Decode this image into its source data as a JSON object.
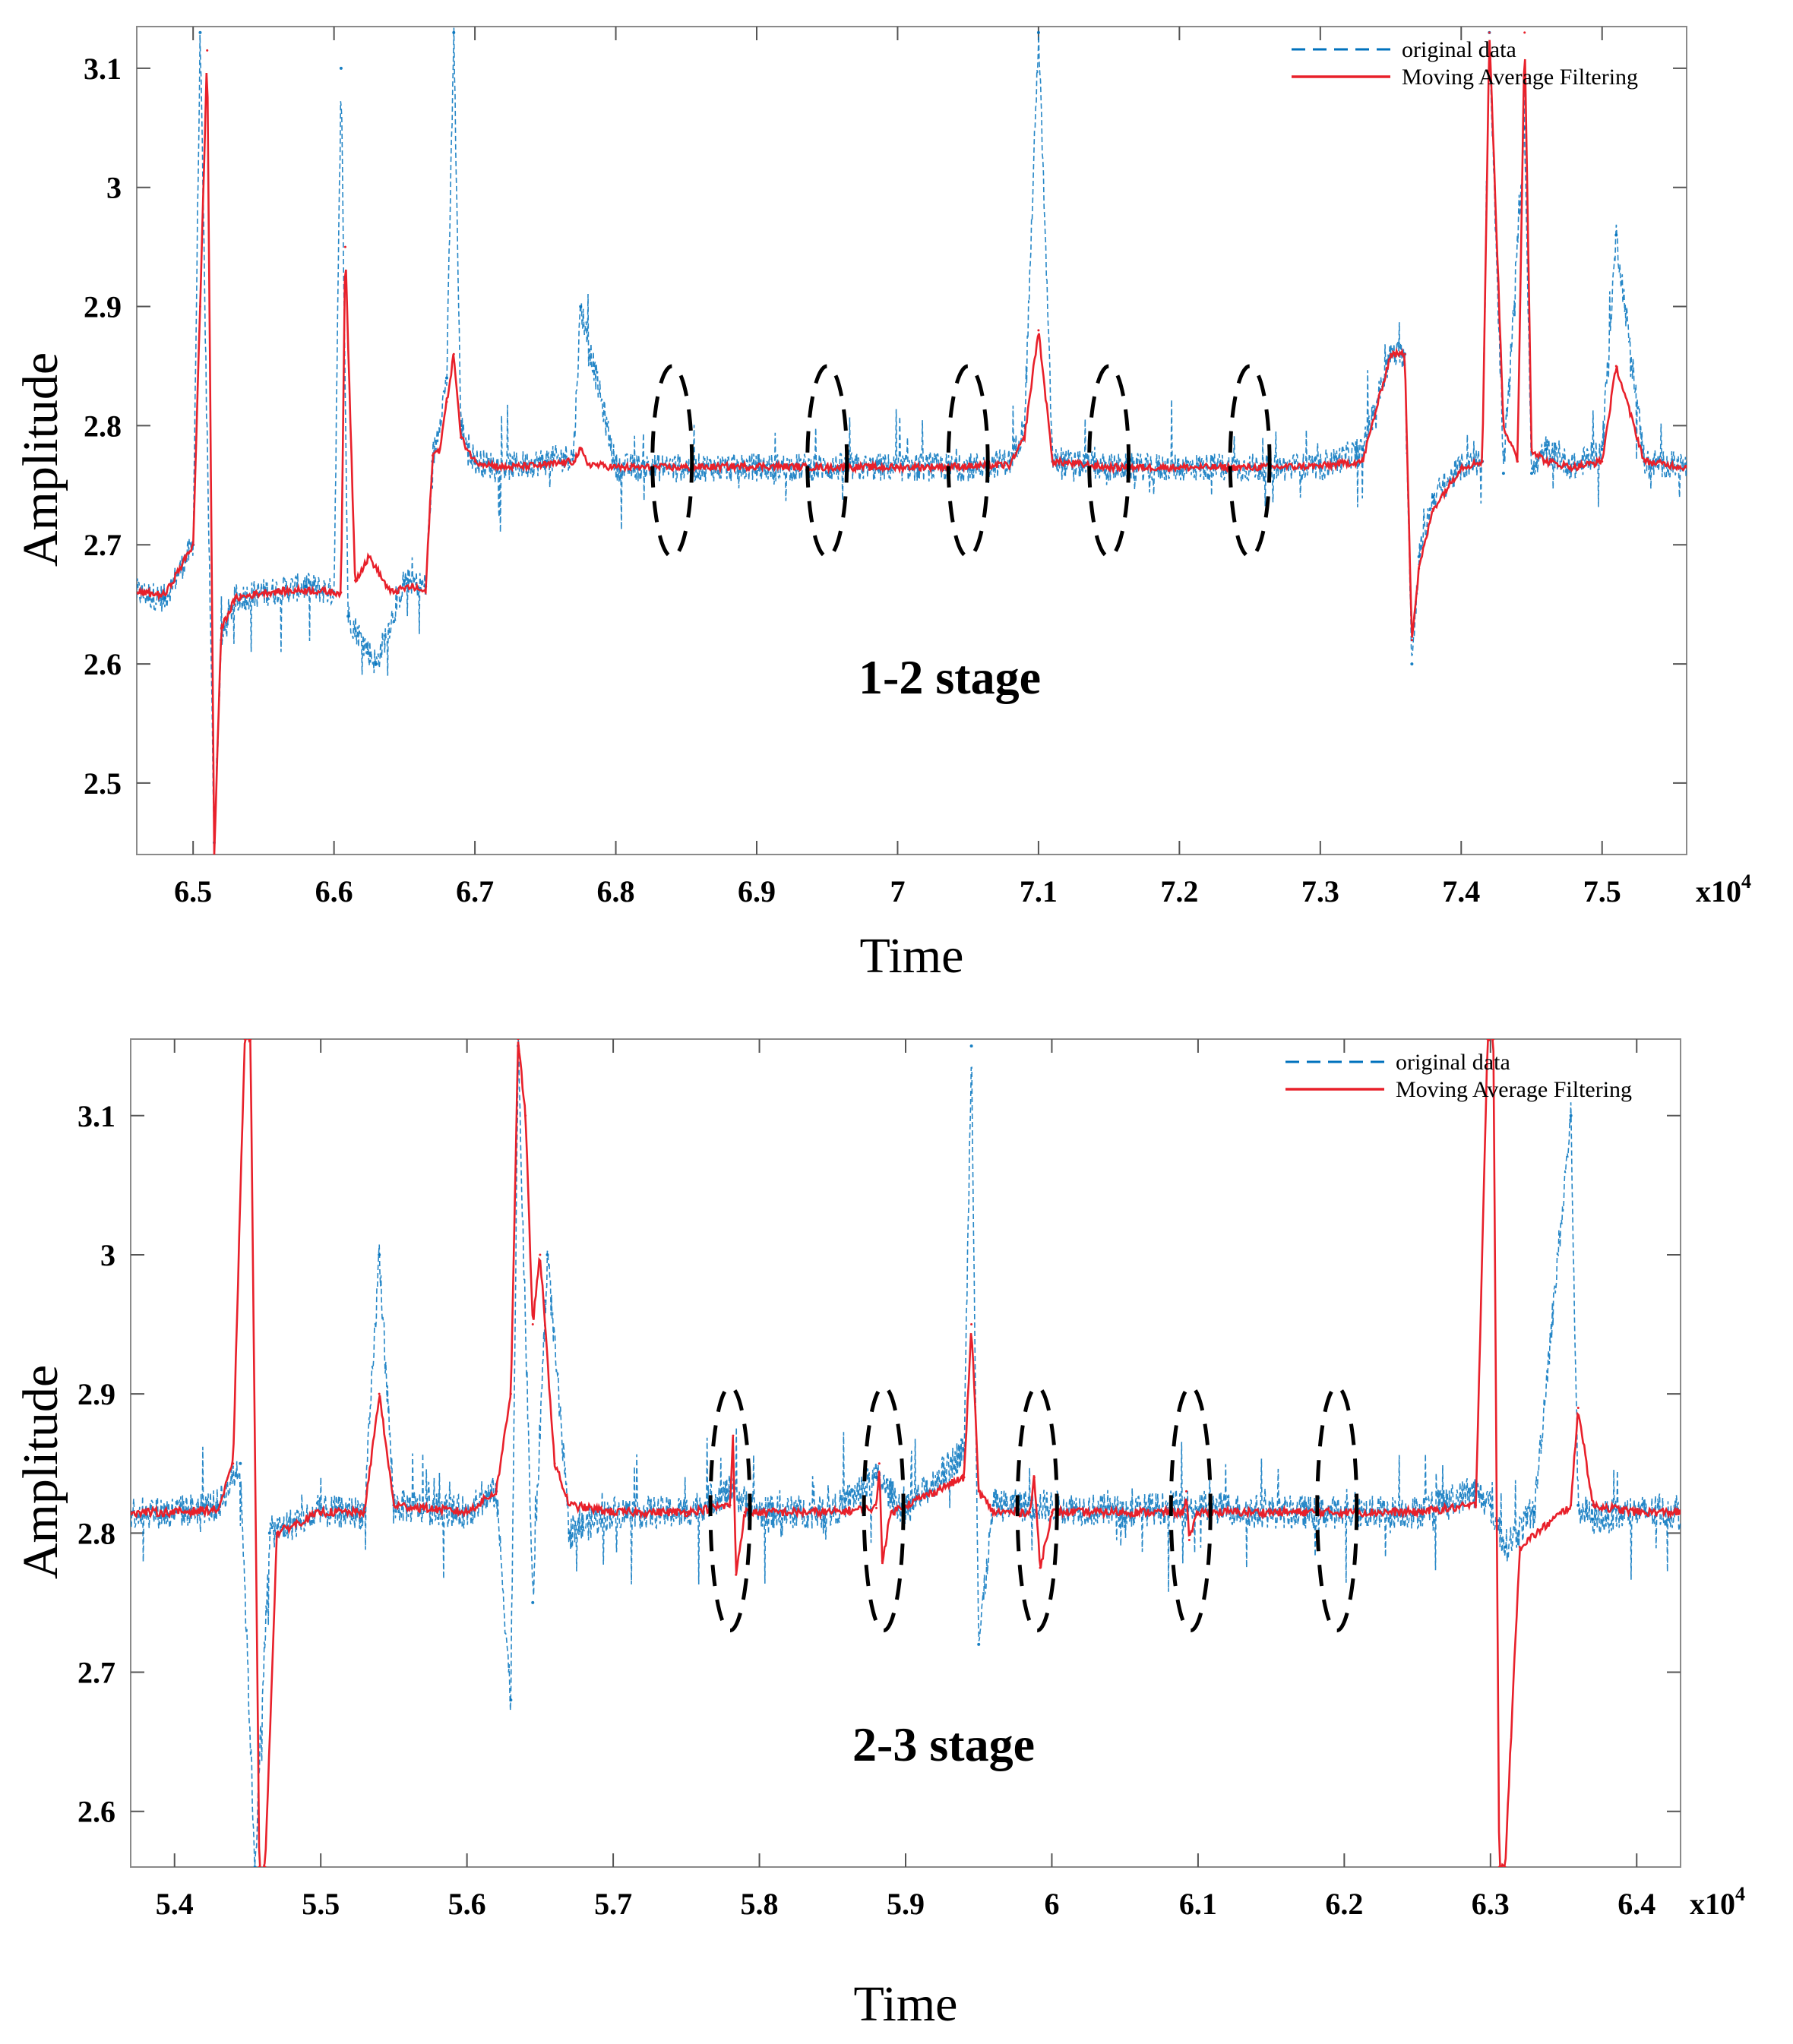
{
  "chart_data": [
    {
      "type": "line",
      "stage_label": "1-2 stage",
      "xlabel": "Time",
      "ylabel": "Amplitude",
      "x_multiplier_base": "x10",
      "x_multiplier_exp": "4",
      "xlim": [
        6.46,
        7.56
      ],
      "ylim": [
        2.44,
        3.135
      ],
      "xticks": [
        6.5,
        6.6,
        6.7,
        6.8,
        6.9,
        7,
        7.1,
        7.2,
        7.3,
        7.4,
        7.5
      ],
      "xtick_labels": [
        "6.5",
        "6.6",
        "6.7",
        "6.8",
        "6.9",
        "7",
        "7.1",
        "7.2",
        "7.3",
        "7.4",
        "7.5"
      ],
      "yticks": [
        2.5,
        2.6,
        2.7,
        2.8,
        2.9,
        3,
        3.1
      ],
      "ytick_labels": [
        "2.5",
        "2.6",
        "2.7",
        "2.8",
        "2.9",
        "3",
        "3.1"
      ],
      "legend": {
        "position": "top-right",
        "entries": [
          "original data",
          "Moving Average Filtering"
        ]
      },
      "series": [
        {
          "name": "original data",
          "style": "dashed",
          "color": "#0072BD",
          "x": [
            6.46,
            6.48,
            6.5,
            6.505,
            6.515,
            6.52,
            6.53,
            6.55,
            6.58,
            6.6,
            6.605,
            6.61,
            6.63,
            6.65,
            6.665,
            6.67,
            6.68,
            6.685,
            6.69,
            6.7,
            6.72,
            6.75,
            6.77,
            6.775,
            6.8,
            6.85,
            6.9,
            6.95,
            7.0,
            7.05,
            7.08,
            7.09,
            7.1,
            7.11,
            7.15,
            7.2,
            7.25,
            7.3,
            7.33,
            7.35,
            7.36,
            7.365,
            7.37,
            7.38,
            7.4,
            7.415,
            7.42,
            7.43,
            7.445,
            7.45,
            7.46,
            7.48,
            7.5,
            7.51,
            7.53,
            7.56
          ],
          "values": [
            2.66,
            2.655,
            2.7,
            3.13,
            2.45,
            2.62,
            2.655,
            2.66,
            2.665,
            2.66,
            3.1,
            2.64,
            2.6,
            2.67,
            2.665,
            2.77,
            2.84,
            3.13,
            2.8,
            2.77,
            2.765,
            2.77,
            2.775,
            2.9,
            2.765,
            2.765,
            2.765,
            2.765,
            2.765,
            2.765,
            2.77,
            2.8,
            3.13,
            2.77,
            2.765,
            2.765,
            2.765,
            2.765,
            2.78,
            2.86,
            2.86,
            2.6,
            2.69,
            2.74,
            2.765,
            2.77,
            3.13,
            2.76,
            3.05,
            2.76,
            2.78,
            2.765,
            2.78,
            2.96,
            2.77,
            2.765
          ]
        },
        {
          "name": "Moving Average Filtering",
          "style": "solid",
          "color": "#E8202A",
          "x": [
            6.46,
            6.48,
            6.5,
            6.505,
            6.51,
            6.515,
            6.52,
            6.53,
            6.55,
            6.58,
            6.6,
            6.605,
            6.608,
            6.615,
            6.625,
            6.64,
            6.655,
            6.665,
            6.67,
            6.675,
            6.68,
            6.685,
            6.69,
            6.7,
            6.72,
            6.75,
            6.77,
            6.775,
            6.78,
            6.8,
            6.85,
            6.9,
            6.95,
            7.0,
            7.05,
            7.08,
            7.09,
            7.1,
            7.11,
            7.15,
            7.2,
            7.25,
            7.3,
            7.33,
            7.35,
            7.36,
            7.365,
            7.37,
            7.38,
            7.4,
            7.415,
            7.42,
            7.43,
            7.44,
            7.445,
            7.45,
            7.46,
            7.48,
            7.5,
            7.51,
            7.53,
            7.56
          ],
          "values": [
            2.66,
            2.658,
            2.7,
            2.9,
            3.115,
            2.44,
            2.63,
            2.655,
            2.66,
            2.662,
            2.66,
            2.66,
            2.95,
            2.67,
            2.69,
            2.66,
            2.665,
            2.66,
            2.775,
            2.78,
            2.82,
            2.86,
            2.79,
            2.77,
            2.765,
            2.767,
            2.77,
            2.78,
            2.768,
            2.765,
            2.765,
            2.766,
            2.765,
            2.765,
            2.766,
            2.767,
            2.79,
            2.88,
            2.77,
            2.765,
            2.765,
            2.765,
            2.766,
            2.77,
            2.86,
            2.86,
            2.62,
            2.68,
            2.73,
            2.765,
            2.77,
            3.13,
            2.8,
            2.77,
            3.13,
            2.78,
            2.77,
            2.765,
            2.77,
            2.85,
            2.77,
            2.765
          ]
        }
      ],
      "annotations": {
        "dashed_ellipses_x": [
          6.84,
          6.95,
          7.05,
          7.15,
          7.25
        ],
        "dashed_ellipses_y_range": [
          2.69,
          2.85
        ]
      }
    },
    {
      "type": "line",
      "stage_label": "2-3 stage",
      "xlabel": "Time",
      "ylabel": "Amplitude",
      "x_multiplier_base": "x10",
      "x_multiplier_exp": "4",
      "xlim": [
        5.37,
        6.43
      ],
      "ylim": [
        2.56,
        3.155
      ],
      "xticks": [
        5.4,
        5.5,
        5.6,
        5.7,
        5.8,
        5.9,
        6,
        6.1,
        6.2,
        6.3,
        6.4
      ],
      "xtick_labels": [
        "5.4",
        "5.5",
        "5.6",
        "5.7",
        "5.8",
        "5.9",
        "6",
        "6.1",
        "6.2",
        "6.3",
        "6.4"
      ],
      "yticks": [
        2.6,
        2.7,
        2.8,
        2.9,
        3,
        3.1
      ],
      "ytick_labels": [
        "2.6",
        "2.7",
        "2.8",
        "2.9",
        "3",
        "3.1"
      ],
      "legend": {
        "position": "top-right",
        "entries": [
          "original data",
          "Moving Average Filtering"
        ]
      },
      "series": [
        {
          "name": "original data",
          "style": "dashed",
          "color": "#0072BD",
          "x": [
            5.37,
            5.4,
            5.43,
            5.445,
            5.455,
            5.465,
            5.5,
            5.53,
            5.54,
            5.55,
            5.6,
            5.62,
            5.63,
            5.635,
            5.645,
            5.655,
            5.67,
            5.7,
            5.75,
            5.78,
            5.8,
            5.85,
            5.88,
            5.9,
            5.94,
            5.945,
            5.95,
            5.96,
            5.99,
            6.05,
            6.09,
            6.15,
            6.2,
            6.25,
            6.29,
            6.3,
            6.31,
            6.33,
            6.355,
            6.36,
            6.37,
            6.4,
            6.43
          ],
          "values": [
            2.815,
            2.815,
            2.82,
            2.85,
            2.56,
            2.8,
            2.815,
            2.815,
            3.0,
            2.82,
            2.815,
            2.83,
            2.68,
            3.15,
            2.75,
            3.0,
            2.8,
            2.815,
            2.815,
            2.83,
            2.815,
            2.815,
            2.84,
            2.815,
            2.86,
            3.15,
            2.72,
            2.82,
            2.82,
            2.815,
            2.82,
            2.815,
            2.815,
            2.815,
            2.83,
            2.82,
            2.79,
            2.815,
            3.1,
            2.82,
            2.81,
            2.815,
            2.815
          ]
        },
        {
          "name": "Moving Average Filtering",
          "style": "solid",
          "color": "#E8202A",
          "x": [
            5.37,
            5.4,
            5.43,
            5.44,
            5.448,
            5.452,
            5.458,
            5.462,
            5.47,
            5.5,
            5.53,
            5.54,
            5.55,
            5.6,
            5.62,
            5.63,
            5.635,
            5.64,
            5.645,
            5.65,
            5.66,
            5.67,
            5.7,
            5.75,
            5.78,
            5.782,
            5.784,
            5.79,
            5.85,
            5.88,
            5.882,
            5.884,
            5.89,
            5.94,
            5.945,
            5.95,
            5.96,
            5.985,
            5.988,
            5.992,
            6.0,
            6.09,
            6.092,
            6.094,
            6.1,
            6.2,
            6.25,
            6.29,
            6.298,
            6.302,
            6.306,
            6.31,
            6.32,
            6.355,
            6.36,
            6.37,
            6.4,
            6.43
          ],
          "values": [
            2.815,
            2.815,
            2.817,
            2.85,
            3.155,
            3.155,
            2.56,
            2.56,
            2.8,
            2.815,
            2.815,
            2.9,
            2.82,
            2.815,
            2.83,
            2.9,
            3.155,
            3.1,
            2.95,
            3.0,
            2.85,
            2.82,
            2.815,
            2.815,
            2.82,
            2.87,
            2.77,
            2.815,
            2.815,
            2.818,
            2.85,
            2.78,
            2.815,
            2.84,
            2.95,
            2.83,
            2.815,
            2.815,
            2.84,
            2.775,
            2.815,
            2.815,
            2.83,
            2.795,
            2.815,
            2.815,
            2.815,
            2.82,
            3.155,
            3.155,
            2.56,
            2.56,
            2.79,
            2.82,
            2.89,
            2.82,
            2.815,
            2.815
          ]
        }
      ],
      "annotations": {
        "dashed_ellipses_x": [
          5.78,
          5.885,
          5.99,
          6.095,
          6.195
        ],
        "dashed_ellipses_y_range": [
          2.73,
          2.905
        ]
      }
    }
  ]
}
